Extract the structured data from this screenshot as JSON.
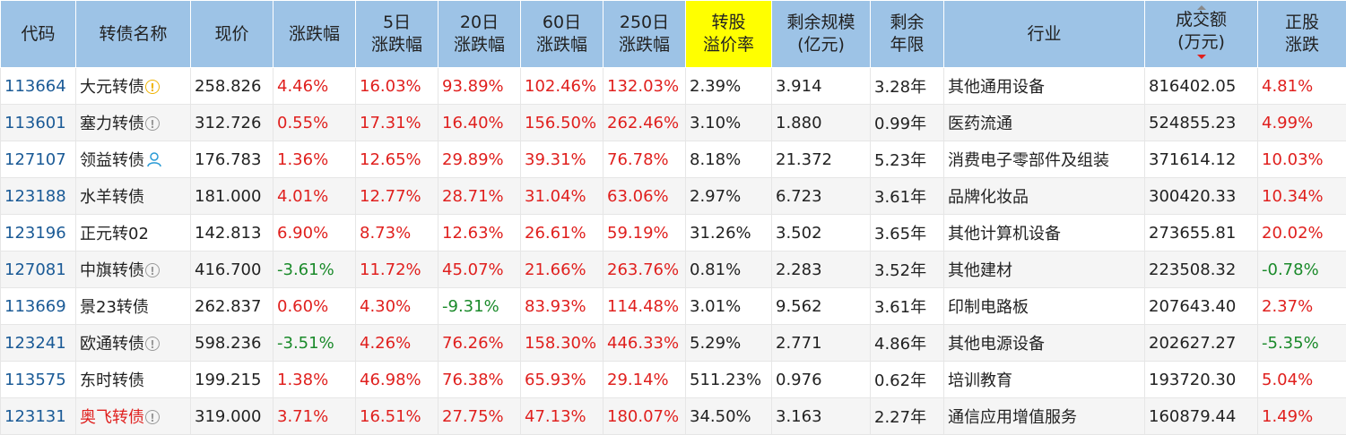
{
  "columns": [
    {
      "label": "代码",
      "w": 84
    },
    {
      "label": "转债名称",
      "w": 128
    },
    {
      "label": "现价",
      "w": 92
    },
    {
      "label": "涨跌幅",
      "w": 92
    },
    {
      "label": "5日\n涨跌幅",
      "w": 92
    },
    {
      "label": "20日\n涨跌幅",
      "w": 92
    },
    {
      "label": "60日\n涨跌幅",
      "w": 92
    },
    {
      "label": "250日\n涨跌幅",
      "w": 92
    },
    {
      "label": "转股\n溢价率",
      "w": 96
    },
    {
      "label": "剩余规模\n(亿元)",
      "w": 110
    },
    {
      "label": "剩余\n年限",
      "w": 82
    },
    {
      "label": "行业",
      "w": 224
    },
    {
      "label": "成交额\n(万元)",
      "w": 126
    },
    {
      "label": "正股\n涨跌",
      "w": 99
    }
  ],
  "highlight_column": 8,
  "sorted_column": 12,
  "rows": [
    {
      "code": "113664",
      "name": "大元转债",
      "icon": "warn",
      "price": "258.826",
      "chg": "4.46%",
      "chg5": "16.03%",
      "chg20": "93.89%",
      "chg60": "102.46%",
      "chg250": "132.03%",
      "premium": "2.39%",
      "size": "3.914",
      "years": "3.28年",
      "industry": "其他通用设备",
      "volume": "816402.05",
      "stock_chg": "4.81%"
    },
    {
      "code": "113601",
      "name": "塞力转债",
      "icon": "info",
      "price": "312.726",
      "chg": "0.55%",
      "chg5": "17.31%",
      "chg20": "16.40%",
      "chg60": "156.50%",
      "chg250": "262.46%",
      "premium": "3.10%",
      "size": "1.880",
      "years": "0.99年",
      "industry": "医药流通",
      "volume": "524855.23",
      "stock_chg": "4.99%"
    },
    {
      "code": "127107",
      "name": "领益转债",
      "icon": "person",
      "price": "176.783",
      "chg": "1.36%",
      "chg5": "12.65%",
      "chg20": "29.89%",
      "chg60": "39.31%",
      "chg250": "76.78%",
      "premium": "8.18%",
      "size": "21.372",
      "years": "5.23年",
      "industry": "消费电子零部件及组装",
      "volume": "371614.12",
      "stock_chg": "10.03%"
    },
    {
      "code": "123188",
      "name": "水羊转债",
      "icon": "",
      "price": "181.000",
      "chg": "4.01%",
      "chg5": "12.77%",
      "chg20": "28.71%",
      "chg60": "31.04%",
      "chg250": "63.06%",
      "premium": "2.97%",
      "size": "6.723",
      "years": "3.61年",
      "industry": "品牌化妆品",
      "volume": "300420.33",
      "stock_chg": "10.34%"
    },
    {
      "code": "123196",
      "name": "正元转02",
      "icon": "",
      "price": "142.813",
      "chg": "6.90%",
      "chg5": "8.73%",
      "chg20": "12.63%",
      "chg60": "26.61%",
      "chg250": "59.19%",
      "premium": "31.26%",
      "size": "3.502",
      "years": "3.65年",
      "industry": "其他计算机设备",
      "volume": "273655.81",
      "stock_chg": "20.02%"
    },
    {
      "code": "127081",
      "name": "中旗转债",
      "icon": "info",
      "price": "416.700",
      "chg": "-3.61%",
      "chg5": "11.72%",
      "chg20": "45.07%",
      "chg60": "21.66%",
      "chg250": "263.76%",
      "premium": "0.81%",
      "size": "2.283",
      "years": "3.52年",
      "industry": "其他建材",
      "volume": "223508.32",
      "stock_chg": "-0.78%"
    },
    {
      "code": "113669",
      "name": "景23转债",
      "icon": "",
      "price": "262.837",
      "chg": "0.60%",
      "chg5": "4.30%",
      "chg20": "-9.31%",
      "chg60": "83.93%",
      "chg250": "114.48%",
      "premium": "3.01%",
      "size": "9.562",
      "years": "3.61年",
      "industry": "印制电路板",
      "volume": "207643.40",
      "stock_chg": "2.37%"
    },
    {
      "code": "123241",
      "name": "欧通转债",
      "icon": "info",
      "price": "598.236",
      "chg": "-3.51%",
      "chg5": "4.26%",
      "chg20": "76.26%",
      "chg60": "158.30%",
      "chg250": "446.33%",
      "premium": "5.29%",
      "size": "2.771",
      "years": "4.86年",
      "industry": "其他电源设备",
      "volume": "202627.27",
      "stock_chg": "-5.35%"
    },
    {
      "code": "113575",
      "name": "东时转债",
      "icon": "",
      "price": "199.215",
      "chg": "1.38%",
      "chg5": "46.98%",
      "chg20": "76.38%",
      "chg60": "65.93%",
      "chg250": "29.14%",
      "premium": "511.23%",
      "size": "0.976",
      "years": "0.62年",
      "industry": "培训教育",
      "volume": "193720.30",
      "stock_chg": "5.04%"
    },
    {
      "code": "123131",
      "name": "奥飞转债",
      "name_red": true,
      "icon": "info",
      "price": "319.000",
      "chg": "3.71%",
      "chg5": "16.51%",
      "chg20": "27.75%",
      "chg60": "47.13%",
      "chg250": "180.07%",
      "premium": "34.50%",
      "size": "3.163",
      "years": "2.27年",
      "industry": "通信应用增值服务",
      "volume": "160879.44",
      "stock_chg": "1.49%"
    }
  ],
  "colors": {
    "header_bg": "#9dc3e6",
    "highlight_bg": "#ffff00",
    "up": "#e0201e",
    "down": "#1a8a2a",
    "code": "#1a5a96"
  }
}
